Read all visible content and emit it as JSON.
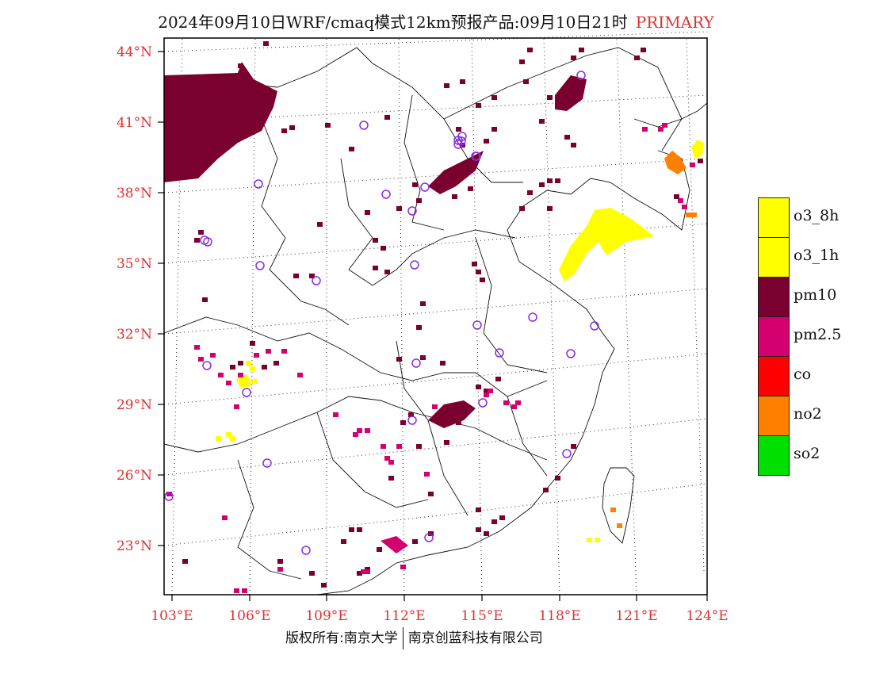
{
  "title": {
    "main": "2024年09月10日WRF/cmaq模式12km预报产品:09月10日21时",
    "tag": "PRIMARY",
    "tag_color": "#e03131"
  },
  "map": {
    "axis_color": "#e03131",
    "lat_labels": [
      "44°N",
      "41°N",
      "38°N",
      "35°N",
      "32°N",
      "29°N",
      "26°N",
      "23°N"
    ],
    "lon_labels": [
      "103°E",
      "106°E",
      "109°E",
      "112°E",
      "115°E",
      "118°E",
      "121°E",
      "124°E"
    ],
    "extent": {
      "lon": [
        102.7,
        124.0
      ],
      "lat": [
        20.9,
        44.5
      ]
    },
    "graticule": "dotted",
    "station_marker": "circle-icon",
    "station_color": "#8a2be2"
  },
  "legend": {
    "items": [
      {
        "label": "o3_8h",
        "color": "#ffff00"
      },
      {
        "label": "o3_1h",
        "color": "#ffff00"
      },
      {
        "label": "pm10",
        "color": "#7a0030"
      },
      {
        "label": "pm2.5",
        "color": "#d4006f"
      },
      {
        "label": "co",
        "color": "#ff0000"
      },
      {
        "label": "no2",
        "color": "#ff7f00"
      },
      {
        "label": "so2",
        "color": "#00e000"
      }
    ]
  },
  "footer": {
    "left": "版权所有:南京大学",
    "right": "南京创蓝科技有限公司"
  }
}
